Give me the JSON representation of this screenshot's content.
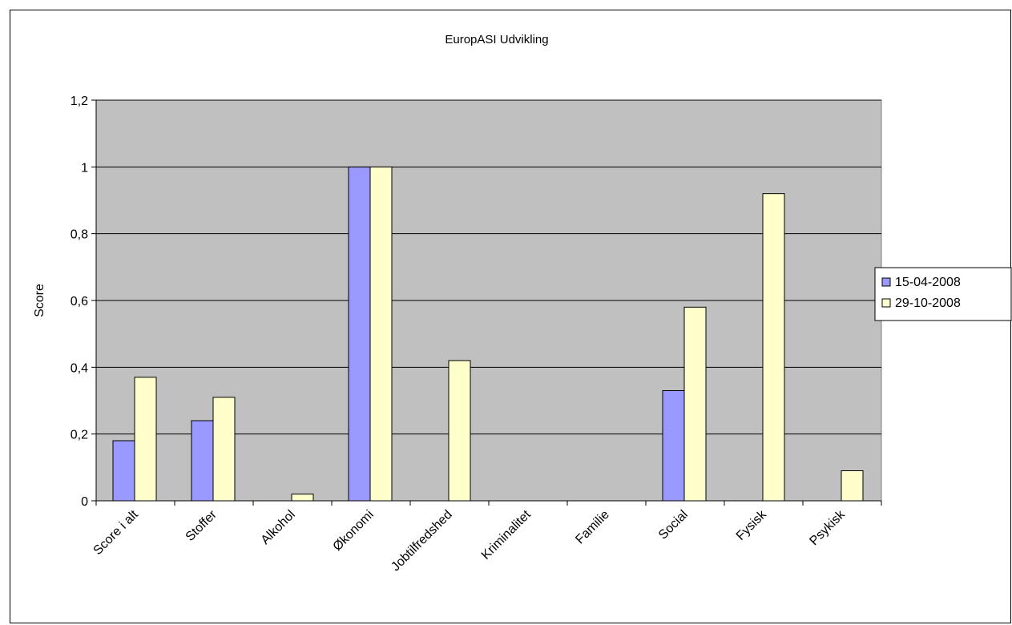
{
  "chart_data": {
    "type": "bar",
    "title": "EuropASI Udvikling",
    "xlabel": "",
    "ylabel": "Score",
    "ylim": [
      0,
      1.2
    ],
    "yticks": [
      "0",
      "0,2",
      "0,4",
      "0,6",
      "0,8",
      "1",
      "1,2"
    ],
    "ytick_values": [
      0,
      0.2,
      0.4,
      0.6,
      0.8,
      1,
      1.2
    ],
    "categories": [
      "Score i alt",
      "Stoffer",
      "Alkohol",
      "Økonomi",
      "Jobtilfredshed",
      "Kriminalitet",
      "Familie",
      "Social",
      "Fysisk",
      "Psykisk"
    ],
    "series": [
      {
        "name": "15-04-2008",
        "color": "#9999ff",
        "values": [
          0.18,
          0.24,
          0,
          1.0,
          0,
          0,
          0,
          0.33,
          0,
          0
        ]
      },
      {
        "name": "29-10-2008",
        "color": "#ffffcc",
        "values": [
          0.37,
          0.31,
          0.02,
          1.0,
          0.42,
          0,
          0,
          0.58,
          0.92,
          0.09
        ]
      }
    ],
    "grid": true,
    "plot_background": "#c0c0c0",
    "legend_position": "right"
  }
}
